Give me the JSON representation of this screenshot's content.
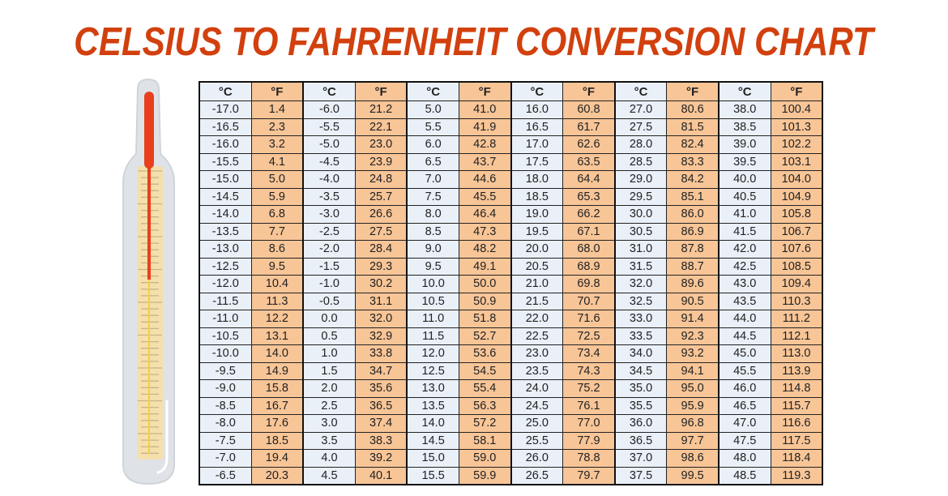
{
  "title": "CELSIUS TO FAHRENHEIT CONVERSION CHART",
  "colors": {
    "title": "#d2400e",
    "celsius_cell": "#eaf0f8",
    "fahrenheit_cell": "#f8c597",
    "mercury": "#e8401c"
  },
  "chart_data": {
    "type": "table",
    "title": "CELSIUS TO FAHRENHEIT CONVERSION CHART",
    "headers": [
      "°C",
      "°F",
      "°C",
      "°F",
      "°C",
      "°F",
      "°C",
      "°F",
      "°C",
      "°F",
      "°C",
      "°F"
    ],
    "rows": [
      [
        "-17.0",
        "1.4",
        "-6.0",
        "21.2",
        "5.0",
        "41.0",
        "16.0",
        "60.8",
        "27.0",
        "80.6",
        "38.0",
        "100.4"
      ],
      [
        "-16.5",
        "2.3",
        "-5.5",
        "22.1",
        "5.5",
        "41.9",
        "16.5",
        "61.7",
        "27.5",
        "81.5",
        "38.5",
        "101.3"
      ],
      [
        "-16.0",
        "3.2",
        "-5.0",
        "23.0",
        "6.0",
        "42.8",
        "17.0",
        "62.6",
        "28.0",
        "82.4",
        "39.0",
        "102.2"
      ],
      [
        "-15.5",
        "4.1",
        "-4.5",
        "23.9",
        "6.5",
        "43.7",
        "17.5",
        "63.5",
        "28.5",
        "83.3",
        "39.5",
        "103.1"
      ],
      [
        "-15.0",
        "5.0",
        "-4.0",
        "24.8",
        "7.0",
        "44.6",
        "18.0",
        "64.4",
        "29.0",
        "84.2",
        "40.0",
        "104.0"
      ],
      [
        "-14.5",
        "5.9",
        "-3.5",
        "25.7",
        "7.5",
        "45.5",
        "18.5",
        "65.3",
        "29.5",
        "85.1",
        "40.5",
        "104.9"
      ],
      [
        "-14.0",
        "6.8",
        "-3.0",
        "26.6",
        "8.0",
        "46.4",
        "19.0",
        "66.2",
        "30.0",
        "86.0",
        "41.0",
        "105.8"
      ],
      [
        "-13.5",
        "7.7",
        "-2.5",
        "27.5",
        "8.5",
        "47.3",
        "19.5",
        "67.1",
        "30.5",
        "86.9",
        "41.5",
        "106.7"
      ],
      [
        "-13.0",
        "8.6",
        "-2.0",
        "28.4",
        "9.0",
        "48.2",
        "20.0",
        "68.0",
        "31.0",
        "87.8",
        "42.0",
        "107.6"
      ],
      [
        "-12.5",
        "9.5",
        "-1.5",
        "29.3",
        "9.5",
        "49.1",
        "20.5",
        "68.9",
        "31.5",
        "88.7",
        "42.5",
        "108.5"
      ],
      [
        "-12.0",
        "10.4",
        "-1.0",
        "30.2",
        "10.0",
        "50.0",
        "21.0",
        "69.8",
        "32.0",
        "89.6",
        "43.0",
        "109.4"
      ],
      [
        "-11.5",
        "11.3",
        "-0.5",
        "31.1",
        "10.5",
        "50.9",
        "21.5",
        "70.7",
        "32.5",
        "90.5",
        "43.5",
        "110.3"
      ],
      [
        "-11.0",
        "12.2",
        "0.0",
        "32.0",
        "11.0",
        "51.8",
        "22.0",
        "71.6",
        "33.0",
        "91.4",
        "44.0",
        "111.2"
      ],
      [
        "-10.5",
        "13.1",
        "0.5",
        "32.9",
        "11.5",
        "52.7",
        "22.5",
        "72.5",
        "33.5",
        "92.3",
        "44.5",
        "112.1"
      ],
      [
        "-10.0",
        "14.0",
        "1.0",
        "33.8",
        "12.0",
        "53.6",
        "23.0",
        "73.4",
        "34.0",
        "93.2",
        "45.0",
        "113.0"
      ],
      [
        "-9.5",
        "14.9",
        "1.5",
        "34.7",
        "12.5",
        "54.5",
        "23.5",
        "74.3",
        "34.5",
        "94.1",
        "45.5",
        "113.9"
      ],
      [
        "-9.0",
        "15.8",
        "2.0",
        "35.6",
        "13.0",
        "55.4",
        "24.0",
        "75.2",
        "35.0",
        "95.0",
        "46.0",
        "114.8"
      ],
      [
        "-8.5",
        "16.7",
        "2.5",
        "36.5",
        "13.5",
        "56.3",
        "24.5",
        "76.1",
        "35.5",
        "95.9",
        "46.5",
        "115.7"
      ],
      [
        "-8.0",
        "17.6",
        "3.0",
        "37.4",
        "14.0",
        "57.2",
        "25.0",
        "77.0",
        "36.0",
        "96.8",
        "47.0",
        "116.6"
      ],
      [
        "-7.5",
        "18.5",
        "3.5",
        "38.3",
        "14.5",
        "58.1",
        "25.5",
        "77.9",
        "36.5",
        "97.7",
        "47.5",
        "117.5"
      ],
      [
        "-7.0",
        "19.4",
        "4.0",
        "39.2",
        "15.0",
        "59.0",
        "26.0",
        "78.8",
        "37.0",
        "98.6",
        "48.0",
        "118.4"
      ],
      [
        "-6.5",
        "20.3",
        "4.5",
        "40.1",
        "15.5",
        "59.9",
        "26.5",
        "79.7",
        "37.5",
        "99.5",
        "48.5",
        "119.3"
      ]
    ]
  },
  "illustration": {
    "icon": "thermometer-icon"
  }
}
